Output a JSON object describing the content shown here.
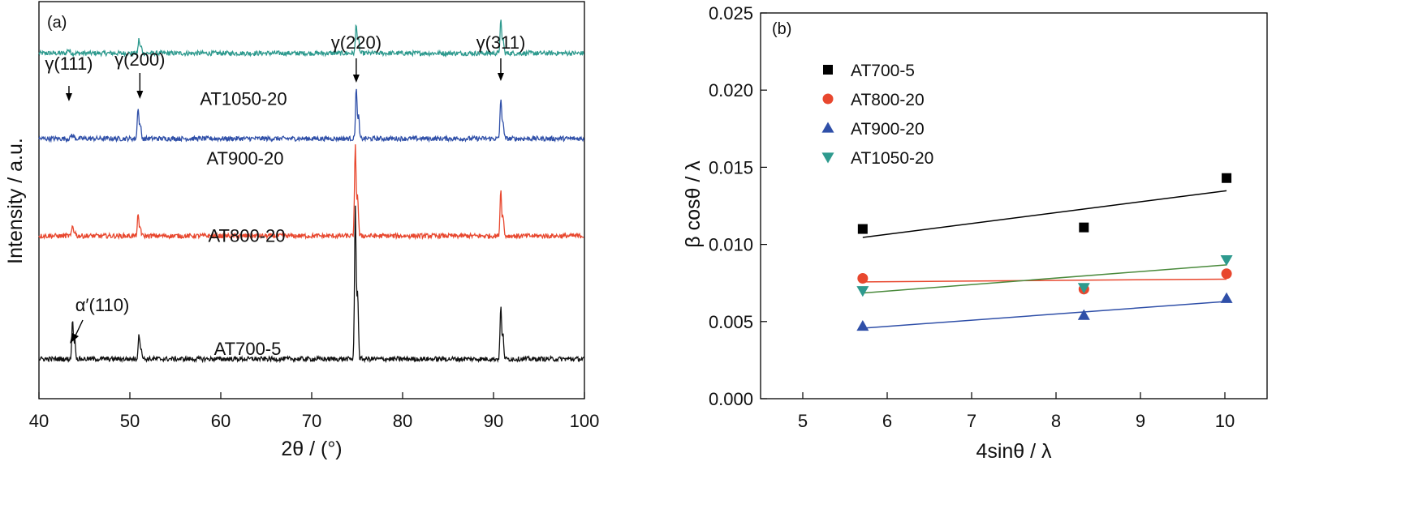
{
  "chart_data": [
    {
      "panel": "(a)",
      "type": "line",
      "xlabel": "2θ / (°)",
      "ylabel": "Intensity / a.u.",
      "xlim": [
        40,
        100
      ],
      "xticks": [
        40,
        50,
        60,
        70,
        80,
        90,
        100
      ],
      "yticks": [],
      "grid": false,
      "series": [
        {
          "name": "AT1050-20",
          "color": "#2e9a8e",
          "baseline": 0.87,
          "peaks": [
            {
              "x": 43.2,
              "h": 0.01
            },
            {
              "x": 51.0,
              "h": 0.035
            },
            {
              "x": 74.9,
              "h": 0.075
            },
            {
              "x": 90.8,
              "h": 0.08
            }
          ]
        },
        {
          "name": "AT900-20",
          "color": "#2f4fa8",
          "baseline": 0.655,
          "peaks": [
            {
              "x": 43.6,
              "h": 0.01
            },
            {
              "x": 50.9,
              "h": 0.08
            },
            {
              "x": 74.9,
              "h": 0.125
            },
            {
              "x": 90.8,
              "h": 0.1
            }
          ]
        },
        {
          "name": "AT800-20",
          "color": "#e8472e",
          "baseline": 0.41,
          "peaks": [
            {
              "x": 43.7,
              "h": 0.025
            },
            {
              "x": 50.9,
              "h": 0.05
            },
            {
              "x": 74.8,
              "h": 0.225
            },
            {
              "x": 90.8,
              "h": 0.115
            }
          ]
        },
        {
          "name": "AT700-5",
          "color": "#111111",
          "baseline": 0.1,
          "peaks": [
            {
              "x": 43.7,
              "h": 0.1
            },
            {
              "x": 51.0,
              "h": 0.065
            },
            {
              "x": 74.8,
              "h": 0.38
            },
            {
              "x": 90.8,
              "h": 0.13
            }
          ]
        }
      ],
      "annotations": [
        {
          "text": "γ(111)",
          "x": 43.3
        },
        {
          "text": "γ(200)",
          "x": 51.1
        },
        {
          "text": "γ(220)",
          "x": 74.9
        },
        {
          "text": "γ(311)",
          "x": 90.8
        },
        {
          "text": "α′(110)",
          "x": 43.7
        }
      ]
    },
    {
      "panel": "(b)",
      "type": "scatter",
      "xlabel": "4sinθ / λ",
      "ylabel": "β cosθ / λ",
      "xlim": [
        4.5,
        10.5
      ],
      "ylim": [
        0,
        0.025
      ],
      "xticks": [
        5,
        6,
        7,
        8,
        9,
        10
      ],
      "yticks": [
        "0.000",
        "0.005",
        "0.010",
        "0.015",
        "0.020",
        "0.025"
      ],
      "grid": false,
      "legend_position": "top-left",
      "series": [
        {
          "name": "AT700-5",
          "marker": "square",
          "color": "#000000",
          "line_color": "#000000",
          "x": [
            5.71,
            8.33,
            10.02
          ],
          "y": [
            0.011,
            0.0111,
            0.0143
          ],
          "fit": [
            [
              5.71,
              0.01045
            ],
            [
              10.02,
              0.01348
            ]
          ]
        },
        {
          "name": "AT800-20",
          "marker": "circle",
          "color": "#e8472e",
          "line_color": "#e8472e",
          "x": [
            5.71,
            8.33,
            10.02
          ],
          "y": [
            0.0078,
            0.0071,
            0.0081
          ],
          "fit": [
            [
              5.71,
              0.00757
            ],
            [
              10.02,
              0.00775
            ]
          ]
        },
        {
          "name": "AT900-20",
          "marker": "triangle-up",
          "color": "#2f4fa8",
          "line_color": "#2f4fa8",
          "x": [
            5.71,
            8.33,
            10.02
          ],
          "y": [
            0.0047,
            0.0054,
            0.0065
          ],
          "fit": [
            [
              5.71,
              0.00457
            ],
            [
              10.02,
              0.0063
            ]
          ]
        },
        {
          "name": "AT1050-20",
          "marker": "triangle-down",
          "color": "#2e9a8e",
          "line_color": "#4a8a3c",
          "x": [
            5.71,
            8.33,
            10.02
          ],
          "y": [
            0.007,
            0.0072,
            0.009
          ],
          "fit": [
            [
              5.71,
              0.00685
            ],
            [
              10.02,
              0.00867
            ]
          ]
        }
      ]
    }
  ]
}
